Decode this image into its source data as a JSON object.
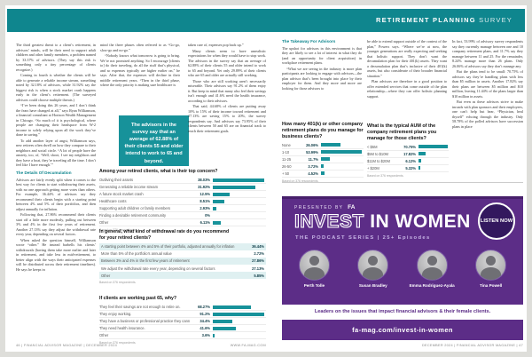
{
  "masthead": {
    "title_bold": "RETIREMENT PLANNING",
    "title_light": "SURVEY"
  },
  "left_page": {
    "col1_paras": [
      "The third greatest threat to a client’s retirement, in advisors’ minds, will be their need to support adult children and other family members, a problem named by 33.37% of advisors. (They say this risk is something only a tiny percentage of clients recognize.)",
      "Coming in fourth is whether the clients will be able to generate a reliable income stream, something noted by 32.18% of advisors, while 31.92% say the biggest risk is when a stock market crash happens early in the client’s retirement. (The surveyed advisors could choose multiple threats.)",
      "“I’ve been doing this 26 years, and I don’t think the fears have changed at all,” says Ryan Williamson, a financial consultant at Horizon Wealth Management in Chicago. “So much of it is psychological, where people are changing their headspace from W-2 income to solely relying upon all the work they’ve done in saving.”",
      "To add another layer of angst, Williamson says, new retirees often dwell on how they compare to their neighbors and social circle. “A lot of people have the anxiety, too, of, ‘Well, shoot, I see my neighbors and they have a boat, they’re traveling all the time. I don’t feel like I have enough.’”"
    ],
    "col1_heading": "The Details Of Decumulation",
    "col1_paras2": [
      "Advisors are fairly evenly split when it comes to the best way for clients to start withdrawing their assets, with no one approach getting more votes than others. For example, 36.44% of advisors say they recommend their clients begin with a starting point between 4% and 5% of their portfolios, and then adjust annually for inflation.",
      "Following that, 27.86% recommend their clients start off a little more modestly, pulling out between 3% and 4% in the first few years of retirement. Another 27.13% say they adjust the withdrawal rate every year, depending on several factors.",
      "When asked the question himself, Williamson wrote “other.” He instead barbells his clients’ withdrawals (having them take more earlier and later in retirement, and take less in mid-retirement, to better align with the ways their anticipated expenses will be distributed across their retirement timelines). He says he keeps in"
    ],
    "col2_paras": [
      "mind the three phases often referred to as “Go-go, slow-go and no-go.”",
      "“Nobody knows what tomorrow is going to bring. We’re not promised anything. So I encourage [clients to] do their traveling, do all the stuff that’s physical, and so expenses typically are higher earlier on,” he says. After that, the expenses will decline in their middle retirement years. “Then in the third phase, where the only priority is making sure healthcare is"
    ],
    "pull_quote": "The advisors in the survey say that an average of 62.88% of their clients 55 and older intend to work to 65 and beyond.",
    "col3_paras": [
      "taken care of, expenses pop back up.”",
      "Many clients seem to have unrealistic expectations for when they would have to stop work. The advisors in the survey say that an average of 62.88% of their clients 55 and older intend to work to 65 and beyond. Yet only 29.89% of their clients who are 65 and older are actually still working.",
      "Those who are still working aren’t necessarily miserable. Their advisors say 91.2% of them enjoy it. But keep in mind that many also feel their savings isn’t enough and 41.6% need the health insurance, according to their advisors.",
      "That said, 44.68% of clients are putting away 10% to 15% of their income toward retirement and 27.13% are saving 15% to 20%, the survey respondents say. And advisors say 73.95% of their clients between 50 and 65 are on financial track to reach their retirement goals."
    ],
    "footer_left": "46  |  FINANCIAL ADVISOR MAGAZINE  |  DECEMBER 2024",
    "footer_site": "WWW.FA-MAG.COM"
  },
  "right_page": {
    "takeaway_heading": "The Takeaway For Advisors",
    "col1_paras": [
      "The upshot for advisors in this environment is that they are likely to see a lot of interest in what they do (and an opportunity for client acquisition) in workplace retirement plans.",
      "“What we are seeing in the industry is more plan participants are looking to engage with advisors—the plan advisor that’s been brought into place by their employer for them. And they more and more are looking for those advisors to"
    ],
    "col2_paras": [
      "be able to extend support outside of the context of the plan,” Powers says. “Where we’re at now, the younger generations are really expecting and seeking that holistic support. They don’t want the decumulation plan for their 401(k) assets. They want a decumulation plan that’s inclusive of their 401(k) assets, but also considerate of their broader financial situation.”",
      "Plan advisors are therefore in a good position to offer extended services that come outside of the plan relationship—where they can offer holistic planning support."
    ],
    "col3_paras": [
      "In fact, 53.99% of advisory survey respondents say they currently manage between one and 10 company retirement plans, and 11.7% say they manage between 11 and 25. For the remainder, 8.24% manage more than 26 plans. Only 26.06% of advisors say they don’t manage any.",
      "But the plans tend to be small: 70.75% of advisors say they’re handling plans with less than $5 million in assets. Another 17.82% say their plans are between $5 million and $10 million, leaving 11.44% of the plans larger than $10 million in assets.",
      "But even as these advisors strive to make inroads with plan sponsors and their employees, one can’t help but hear, “Physician, heal thyself” echoing through the industry. Only 58.78% of the polled advisors have succession plans in place"
    ],
    "footer_right": "DECEMBER 2024  |  FINANCIAL ADVISOR MAGAZINE  |  47"
  },
  "ad": {
    "presented_by": "PRESENTED BY",
    "fa_logo": "FA",
    "headline_outline": "INVEST",
    "headline_solid": " IN WOMEN",
    "subtitle": "THE PODCAST SERIES  |  25+ Episodes",
    "listen_badge": "LISTEN NOW",
    "speakers": [
      "Perth Tolle",
      "Susan Bradley",
      "Emma Rodriguez-Ayala",
      "Tina Powell"
    ],
    "tagline": "Leaders on the issues that impact financial advisors & their female clients.",
    "url": "fa-mag.com/invest-in-women"
  },
  "chart_data": [
    {
      "type": "bar",
      "style": "bars",
      "title": "Among your retired clients, what is their top concern?",
      "categories": [
        "Outliving their assets",
        "Generating a reliable income stream",
        "A future stock market crash",
        "Healthcare costs",
        "Supporting adult children or family members",
        "Finding a desirable retirement community",
        "Other"
      ],
      "values": [
        38.03,
        31.92,
        12.5,
        8.51,
        2.93,
        0,
        6.11
      ],
      "value_labels": [
        "38.03%",
        "31.92%",
        "12.5%",
        "8.51%",
        "2.93%",
        "0%",
        "6.11%"
      ],
      "unit": "%",
      "xlim": [
        0,
        40
      ],
      "footnote": "Based on 376 respondents."
    },
    {
      "type": "table",
      "style": "striped",
      "title": "In general, what kind of withdrawal rate do you recommend for your retired clients?",
      "categories": [
        "A starting point between 4% and 5% of their portfolio, adjusted annually for inflation",
        "More than 5% of the portfolio’s annual value",
        "Between 3% and 4% in the first few years of retirement",
        "We adjust the withdrawal rate every year, depending on several factors",
        "Other"
      ],
      "values": [
        36.44,
        2.72,
        27.86,
        27.13,
        5.85
      ],
      "value_labels": [
        "36.44%",
        "2.72%",
        "27.86%",
        "27.13%",
        "5.85%"
      ],
      "unit": "%",
      "footnote": "Based on 376 respondents."
    },
    {
      "type": "bar",
      "style": "bars",
      "title": "If clients are working past 65, why?",
      "categories": [
        "They feel their savings are not enough to retire on.",
        "They enjoy working.",
        "They have a business or professional practice they cannot sell.",
        "They need health insurance.",
        "Other"
      ],
      "values": [
        68.27,
        91.2,
        34.4,
        41.6,
        3.6
      ],
      "value_labels": [
        "68.27%",
        "91.2%",
        "34.4%",
        "41.6%",
        "3.6%"
      ],
      "unit": "%",
      "xlim": [
        0,
        100
      ],
      "footnote": "Based on 376 respondents."
    },
    {
      "type": "bar",
      "style": "bars",
      "title": "How many 401(k) or other company retirement plans do you manage for business clients?",
      "categories": [
        "None",
        "1-10",
        "11-25",
        "26-50",
        "+ 50"
      ],
      "values": [
        26.06,
        53.99,
        11.7,
        3.72,
        4.52
      ],
      "value_labels": [
        "26.06%",
        "53.99%",
        "11.7%",
        "3.72%",
        "4.52%"
      ],
      "unit": "%",
      "xlim": [
        0,
        60
      ],
      "footnote": "Based on 376 respondents."
    },
    {
      "type": "bar",
      "style": "bars",
      "title": "What is the typical AUM of the company retirement plans you manage for those clients?",
      "categories": [
        "< $5M",
        "$5M to $10M",
        "$11M to $20M",
        "+ $20M"
      ],
      "values": [
        70.75,
        17.82,
        6.12,
        5.32
      ],
      "value_labels": [
        "70.75%",
        "17.82%",
        "6.12%",
        "5.32%"
      ],
      "unit": "%",
      "xlim": [
        0,
        80
      ],
      "footnote": "Based on 376 respondents."
    }
  ],
  "colors": {
    "teal": "#0f868e",
    "bar_teal": "#17929a",
    "purple": "#5c2d87",
    "stripe": "#dff0f1"
  }
}
